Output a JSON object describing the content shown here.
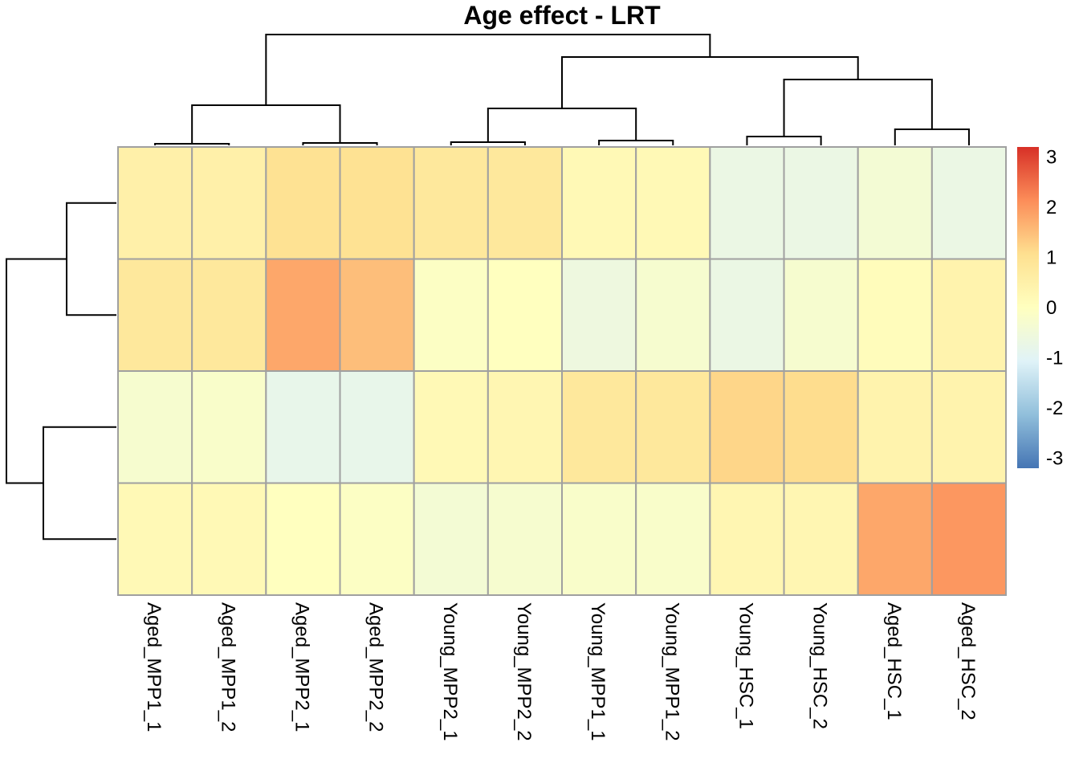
{
  "chart_data": {
    "type": "heatmap",
    "title": "Age effect - LRT",
    "columns": [
      "Aged_MPP1_1",
      "Aged_MPP1_2",
      "Aged_MPP2_1",
      "Aged_MPP2_2",
      "Young_MPP2_1",
      "Young_MPP2_2",
      "Young_MPP1_1",
      "Young_MPP1_2",
      "Young_HSC_1",
      "Young_HSC_2",
      "Aged_HSC_1",
      "Aged_HSC_2"
    ],
    "rows": 4,
    "values": [
      [
        0.5,
        0.5,
        1.0,
        1.0,
        0.8,
        0.8,
        0.2,
        0.2,
        -0.7,
        -0.7,
        -0.4,
        -0.7
      ],
      [
        0.8,
        0.8,
        1.8,
        1.5,
        -0.1,
        0.0,
        -0.6,
        -0.3,
        -0.7,
        -0.3,
        0.1,
        0.4
      ],
      [
        -0.3,
        -0.2,
        -0.8,
        -0.8,
        0.2,
        0.3,
        0.8,
        0.8,
        1.2,
        1.1,
        0.4,
        0.4
      ],
      [
        0.2,
        0.2,
        0.0,
        -0.1,
        -0.4,
        -0.3,
        -0.2,
        -0.2,
        0.3,
        0.3,
        1.8,
        2.0
      ]
    ],
    "color_scale": {
      "range": [
        -3.2,
        3.2
      ],
      "stops": [
        "#4575B4",
        "#91BFDB",
        "#E0F3F8",
        "#FFFFBF",
        "#FEE090",
        "#FC8D59",
        "#D73027"
      ],
      "ticks": [
        "3",
        "2",
        "1",
        "0",
        "-1",
        "-2",
        "-3"
      ],
      "tick_values": [
        3,
        2,
        1,
        0,
        -1,
        -2,
        -3
      ]
    },
    "col_dendrogram": [
      [
        0,
        1
      ],
      [
        2,
        3
      ],
      [
        -1,
        -2
      ],
      [
        4,
        5
      ],
      [
        6,
        7
      ],
      [
        -4,
        -5
      ],
      [
        8,
        9
      ],
      [
        10,
        11
      ],
      [
        -7,
        -8
      ],
      [
        -6,
        -9
      ],
      [
        -3,
        -10
      ]
    ],
    "row_dendrogram": [
      [
        0,
        1
      ],
      [
        2,
        3
      ],
      [
        -1,
        -2
      ]
    ],
    "grid_color": "#A0A0A0",
    "tree_color": "#000000"
  }
}
